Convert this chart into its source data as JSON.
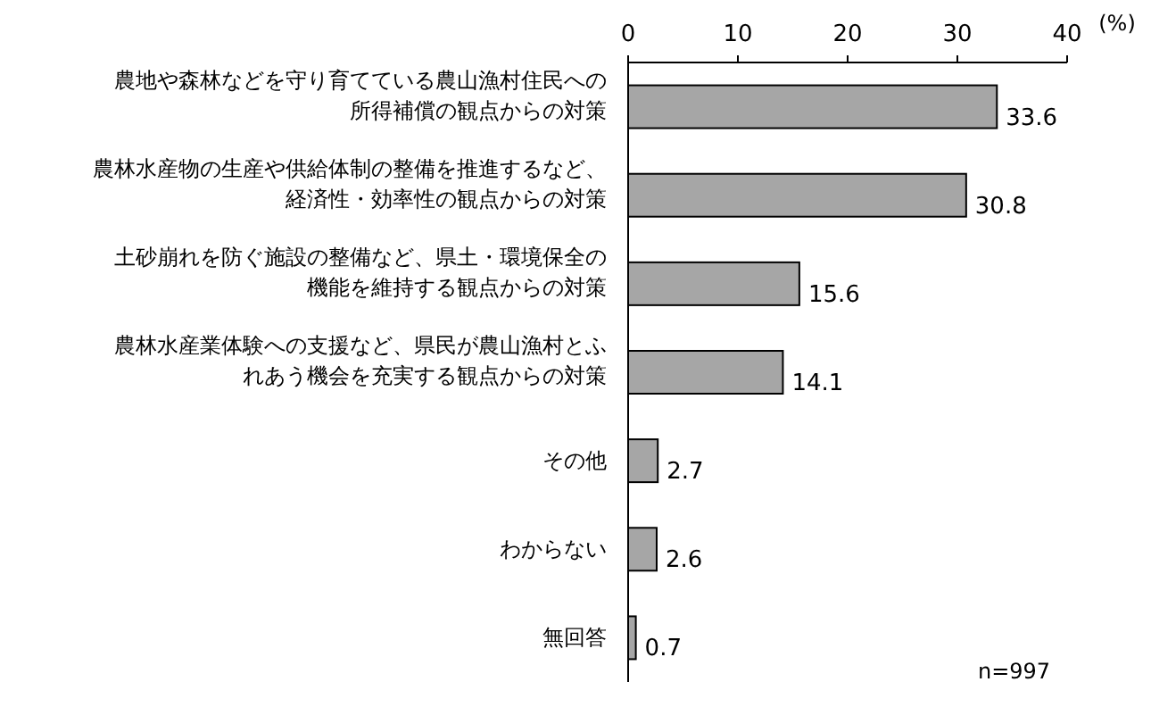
{
  "chart_data": {
    "type": "bar",
    "orientation": "horizontal",
    "xlabel": "(%)",
    "categories": [
      "農地や森林などを守り育てている農山漁村住民への所得補償の観点からの対策",
      "農林水産物の生産や供給体制の整備を推進するなど、経済性・効率性の観点からの対策",
      "土砂崩れを防ぐ施設の整備など、県土・環境保全の機能を維持する観点からの対策",
      "農林水産業体験への支援など、県民が農山漁村とふれあう機会を充実する観点からの対策",
      "その他",
      "わからない",
      "無回答"
    ],
    "values": [
      33.6,
      30.8,
      15.6,
      14.1,
      2.7,
      2.6,
      0.7
    ],
    "color": "#a6a6a6",
    "xlim": [
      0,
      40
    ],
    "xticks": [
      0,
      10,
      20,
      30,
      40
    ],
    "data_labels": true,
    "annotations": [
      "n=997"
    ]
  }
}
